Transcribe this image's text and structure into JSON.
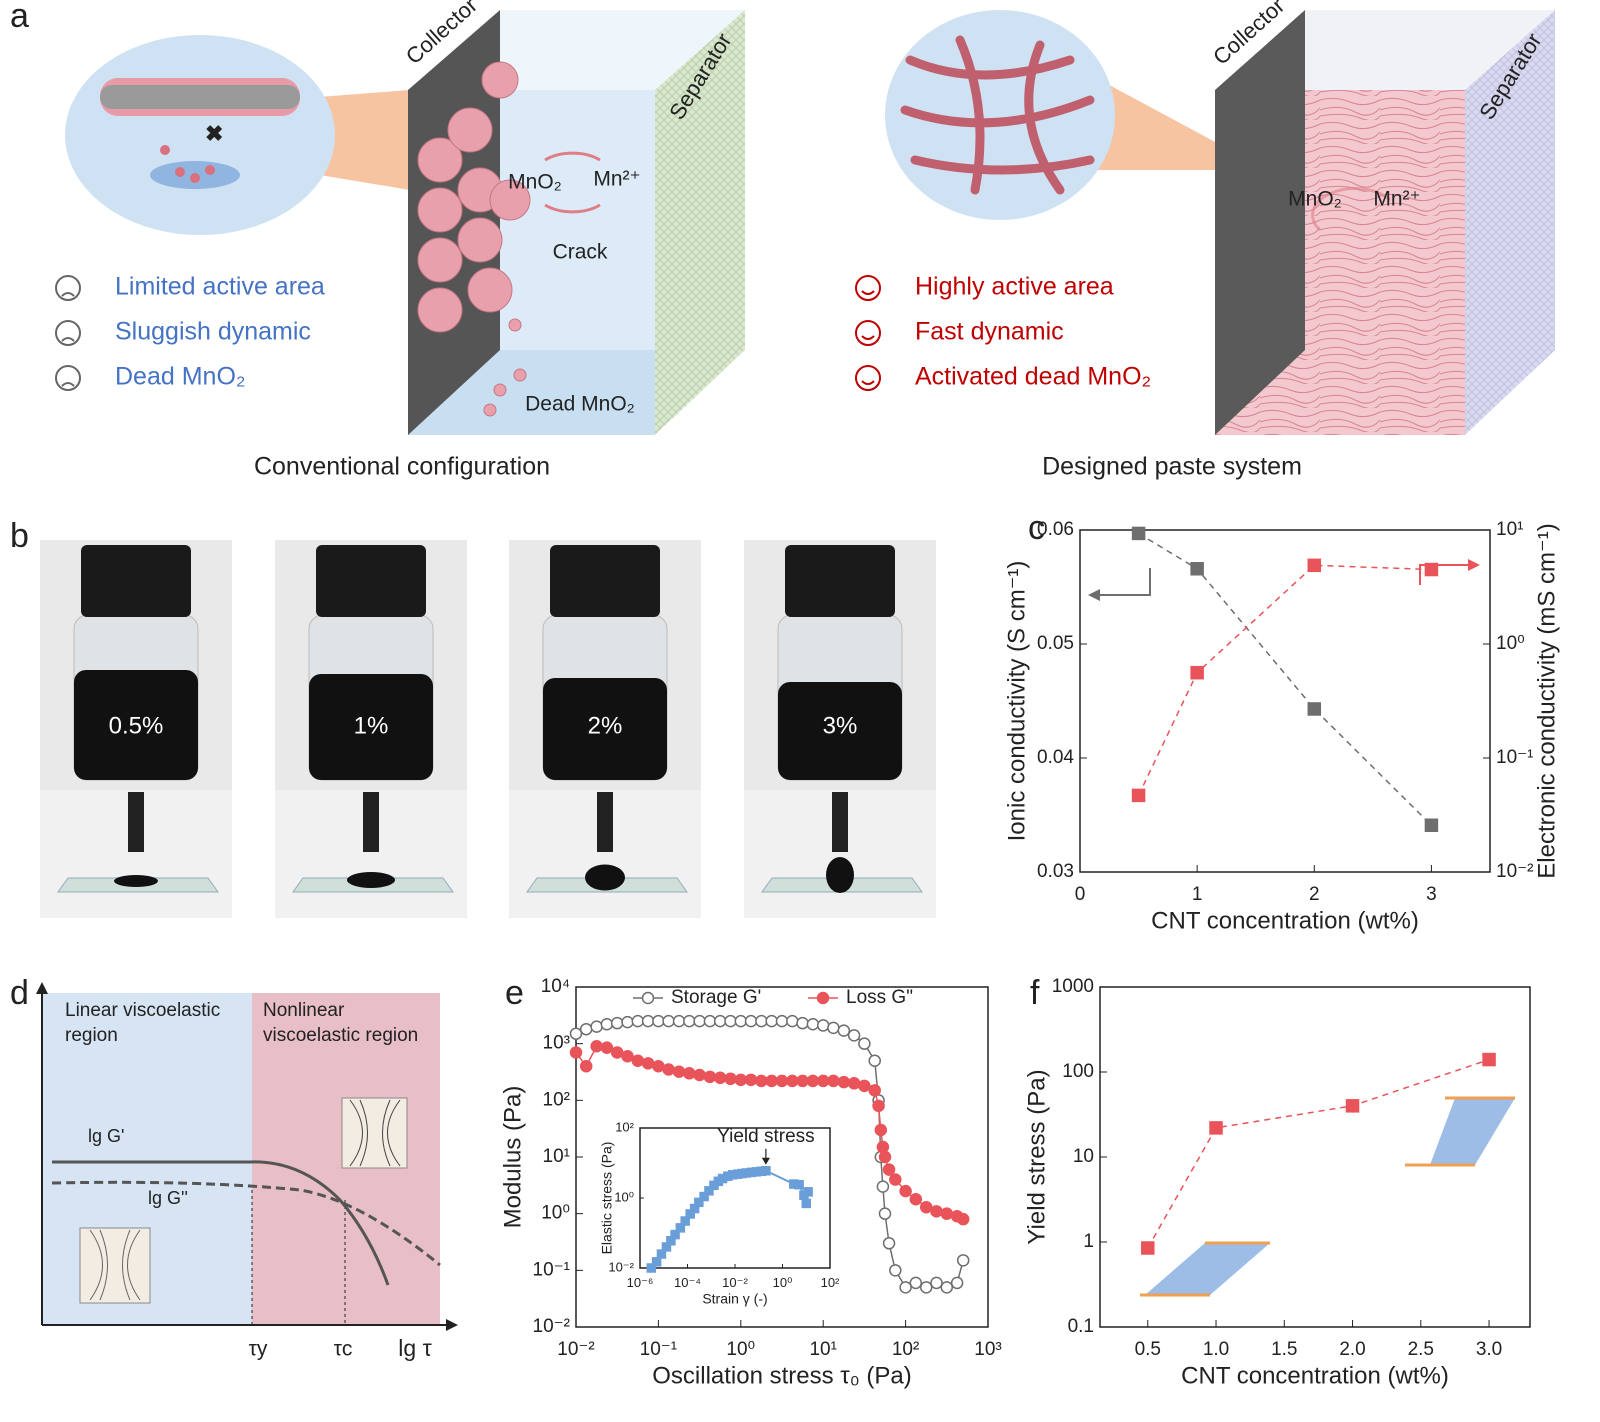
{
  "panel_labels": [
    "a",
    "b",
    "c",
    "d",
    "e",
    "f"
  ],
  "panel_a": {
    "conventional": {
      "collector": "Collector",
      "separator": "Separator",
      "species": [
        "MnO₂",
        "Mn²⁺"
      ],
      "crack": "Crack",
      "dead": "Dead MnO₂",
      "features": [
        "Limited active area",
        "Sluggish dynamic",
        "Dead MnO₂"
      ],
      "caption": "Conventional configuration"
    },
    "designed": {
      "collector": "Collector",
      "separator": "Separator",
      "species": [
        "MnO₂",
        "Mn²⁺"
      ],
      "features": [
        "Highly active area",
        "Fast dynamic",
        "Activated dead MnO₂"
      ],
      "caption": "Designed paste system"
    }
  },
  "panel_b": {
    "samples": [
      "0.5%",
      "1%",
      "2%",
      "3%"
    ]
  },
  "panel_d": {
    "regions": [
      "Linear viscoelastic region",
      "Nonlinear viscoelastic region"
    ],
    "curves": [
      "lg G'",
      "lg G''"
    ],
    "axis_ticks": [
      "τy",
      "τc"
    ],
    "x_label": "lg τ"
  },
  "chart_data": [
    {
      "type": "line",
      "x": [
        0.5,
        1,
        2,
        3
      ],
      "xlim": [
        0,
        3.5
      ],
      "xticks": [
        0,
        1,
        2,
        3
      ],
      "ylim": [
        0.03,
        0.06
      ],
      "yticks": [
        0.03,
        0.04,
        0.05,
        0.06
      ],
      "y2lim": [
        0.01,
        10
      ],
      "y2log": true,
      "y2ticks": [
        {
          "value": 0.01,
          "label": "10⁻²"
        },
        {
          "value": 0.1,
          "label": "10⁻¹"
        },
        {
          "value": 1,
          "label": "10⁰"
        },
        {
          "value": 10,
          "label": "10¹"
        }
      ],
      "x_label": "CNT concentration (wt%)",
      "y_label": "Ionic conductivity (S cm⁻¹)",
      "y2_label": "Electronic conductivity (mS cm⁻¹)",
      "series": [
        {
          "color": "#6e6e6e",
          "marker": "square",
          "filled": true,
          "dashed": true,
          "values": [
            0.0597,
            0.0566,
            0.0443,
            0.0341
          ]
        },
        {
          "color": "#e8545a",
          "marker": "square",
          "filled": true,
          "dashed": true,
          "axis": "y2",
          "values": [
            0.047,
            0.56,
            4.9,
            4.5
          ]
        }
      ]
    },
    {
      "type": "line",
      "xlog": true,
      "ylog": true,
      "xlim": [
        0.01,
        1000
      ],
      "ylim": [
        0.01,
        10000
      ],
      "xticks": [
        {
          "value": 0.01,
          "label": "10⁻²"
        },
        {
          "value": 0.1,
          "label": "10⁻¹"
        },
        {
          "value": 1,
          "label": "10⁰"
        },
        {
          "value": 10,
          "label": "10¹"
        },
        {
          "value": 100,
          "label": "10²"
        },
        {
          "value": 1000,
          "label": "10³"
        }
      ],
      "yticks": [
        {
          "value": 0.01,
          "label": "10⁻²"
        },
        {
          "value": 0.1,
          "label": "10⁻¹"
        },
        {
          "value": 1,
          "label": "10⁰"
        },
        {
          "value": 10,
          "label": "10¹"
        },
        {
          "value": 100,
          "label": "10²"
        },
        {
          "value": 1000,
          "label": "10³"
        },
        {
          "value": 10000,
          "label": "10⁴"
        }
      ],
      "x_label": "Oscillation stress τ₀ (Pa)",
      "y_label": "Modulus (Pa)",
      "legend": "top",
      "x": [
        0.01,
        0.0133,
        0.0178,
        0.0237,
        0.0316,
        0.0422,
        0.0562,
        0.075,
        0.1,
        0.133,
        0.178,
        0.237,
        0.316,
        0.422,
        0.562,
        0.75,
        1,
        1.33,
        1.78,
        2.37,
        3.16,
        4.22,
        5.62,
        7.5,
        10,
        13.3,
        17.8,
        23.7,
        31.6,
        42.2,
        47,
        50,
        53,
        56.2,
        63,
        75,
        100,
        133,
        178,
        237,
        316,
        422,
        500
      ],
      "series": [
        {
          "name": "Storage G'",
          "color": "#6e6e6e",
          "marker": "circle",
          "filled": false,
          "dashed": false,
          "values": [
            1500,
            1800,
            2000,
            2200,
            2300,
            2400,
            2500,
            2500,
            2500,
            2500,
            2500,
            2500,
            2500,
            2500,
            2500,
            2500,
            2500,
            2500,
            2500,
            2500,
            2500,
            2500,
            2300,
            2200,
            2100,
            1900,
            1700,
            1400,
            1000,
            500,
            100,
            10,
            3,
            1,
            0.3,
            0.1,
            0.05,
            0.06,
            0.05,
            0.06,
            0.05,
            0.06,
            0.15
          ]
        },
        {
          "name": "Loss G\"",
          "color": "#e8545a",
          "marker": "circle",
          "filled": true,
          "dashed": false,
          "values": [
            700,
            400,
            900,
            850,
            700,
            600,
            500,
            450,
            400,
            350,
            320,
            300,
            280,
            260,
            250,
            240,
            230,
            230,
            220,
            220,
            220,
            220,
            220,
            220,
            220,
            220,
            210,
            200,
            180,
            150,
            80,
            30,
            15,
            10,
            6,
            4,
            2.5,
            1.8,
            1.3,
            1.1,
            1,
            0.9,
            0.8
          ]
        }
      ]
    },
    {
      "type": "line",
      "xlog": true,
      "ylog": true,
      "xlim": [
        1e-06,
        100
      ],
      "ylim": [
        0.01,
        100
      ],
      "xticks": [
        {
          "value": 1e-06,
          "label": "10⁻⁶"
        },
        {
          "value": 0.0001,
          "label": "10⁻⁴"
        },
        {
          "value": 0.01,
          "label": "10⁻²"
        },
        {
          "value": 1,
          "label": "10⁰"
        },
        {
          "value": 100,
          "label": "10²"
        }
      ],
      "yticks": [
        {
          "value": 0.01,
          "label": "10⁻²"
        },
        {
          "value": 1,
          "label": "10⁰"
        },
        {
          "value": 100,
          "label": "10²"
        }
      ],
      "x_label": "Strain γ (-)",
      "y_label": "Elastic stress (Pa)",
      "annotation": "Yield stress",
      "x": [
        3e-06,
        5e-06,
        8e-06,
        1.3e-05,
        2e-05,
        3e-05,
        5e-05,
        8e-05,
        0.00013,
        0.0002,
        0.0003,
        0.0005,
        0.0008,
        0.0013,
        0.002,
        0.003,
        0.005,
        0.008,
        0.013,
        0.02,
        0.03,
        0.05,
        0.08,
        0.13,
        0.2,
        3,
        5,
        8,
        10,
        12
      ],
      "series": [
        {
          "color": "#6a9ed8",
          "marker": "square",
          "filled": true,
          "dashed": false,
          "values": [
            0.01,
            0.015,
            0.025,
            0.04,
            0.06,
            0.09,
            0.14,
            0.22,
            0.35,
            0.5,
            0.75,
            1.1,
            1.6,
            2.3,
            3,
            3.6,
            4.2,
            4.6,
            4.8,
            5,
            5.2,
            5.4,
            5.6,
            5.8,
            6,
            2.5,
            2.4,
            1.2,
            0.7,
            1.5
          ]
        }
      ]
    },
    {
      "type": "line",
      "ylog": true,
      "x": [
        0.5,
        1,
        2,
        3
      ],
      "xlim": [
        0.15,
        3.3
      ],
      "xticks": [
        0.5,
        {
          "value": 1,
          "label": "1.0"
        },
        1.5,
        {
          "value": 2,
          "label": "2.0"
        },
        2.5,
        {
          "value": 3,
          "label": "3.0"
        }
      ],
      "ylim": [
        0.1,
        1000
      ],
      "yticks": [
        0.1,
        1,
        10,
        100,
        1000
      ],
      "x_label": "CNT concentration (wt%)",
      "y_label": "Yield stress (Pa)",
      "series": [
        {
          "color": "#e8545a",
          "marker": "square",
          "filled": true,
          "dashed": true,
          "values": [
            0.85,
            22,
            40,
            140
          ]
        }
      ]
    }
  ]
}
